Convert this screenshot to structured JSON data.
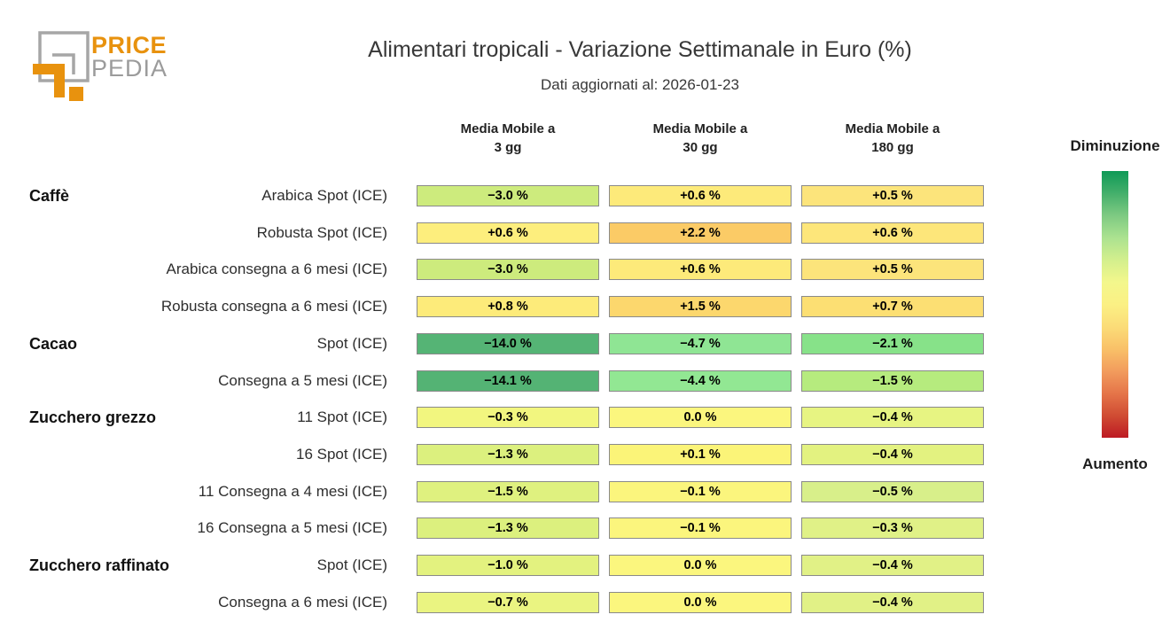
{
  "logo": {
    "price": "PRICE",
    "pedia": "PEDIA",
    "orange": "#e8920e",
    "gray": "#a6a6a6"
  },
  "header": {
    "title": "Alimentari tropicali - Variazione Settimanale in Euro (%)",
    "subtitle": "Dati aggiornati al: 2026-01-23"
  },
  "column_headers": [
    {
      "line1": "Media Mobile a",
      "line2": "3 gg"
    },
    {
      "line1": "Media Mobile a",
      "line2": "30 gg"
    },
    {
      "line1": "Media Mobile a",
      "line2": "180 gg"
    }
  ],
  "legend": {
    "top_label": "Diminuzione",
    "bottom_label": "Aumento",
    "gradient_stops": [
      "#0e9a57",
      "#44af6b",
      "#7eca82",
      "#abe290",
      "#d3ef8d",
      "#f3f78c",
      "#fbf084",
      "#fbdc78",
      "#f9c168",
      "#f29c5d",
      "#e57549",
      "#d04c33",
      "#bd1a23"
    ]
  },
  "chart_data": {
    "type": "heatmap",
    "title": "Alimentari tropicali - Variazione Settimanale in Euro (%)",
    "subtitle": "Dati aggiornati al: 2026-01-23",
    "unit": "%",
    "columns": [
      "Media Mobile a 3 gg",
      "Media Mobile a 30 gg",
      "Media Mobile a 180 gg"
    ],
    "legend": {
      "top": "Diminuzione",
      "bottom": "Aumento",
      "colormap": "green-yellow-red (green = decrease, red = increase)"
    },
    "rows": [
      {
        "category": "Caffè",
        "label": "Arabica Spot (ICE)",
        "values": [
          -3.0,
          0.6,
          0.5
        ],
        "display": [
          "−3.0 %",
          "+0.6 %",
          "+0.5 %"
        ],
        "colors": [
          "#cdeb7d",
          "#fdea7a",
          "#fce47b"
        ]
      },
      {
        "category": "",
        "label": "Robusta Spot (ICE)",
        "values": [
          0.6,
          2.2,
          0.6
        ],
        "display": [
          "+0.6 %",
          "+2.2 %",
          "+0.6 %"
        ],
        "colors": [
          "#fdee7d",
          "#fbcb66",
          "#fde67a"
        ]
      },
      {
        "category": "",
        "label": "Arabica consegna a 6 mesi (ICE)",
        "values": [
          -3.0,
          0.6,
          0.5
        ],
        "display": [
          "−3.0 %",
          "+0.6 %",
          "+0.5 %"
        ],
        "colors": [
          "#cdeb7d",
          "#fdea7a",
          "#fce47b"
        ]
      },
      {
        "category": "",
        "label": "Robusta consegna a 6 mesi (ICE)",
        "values": [
          0.8,
          1.5,
          0.7
        ],
        "display": [
          "+0.8 %",
          "+1.5 %",
          "+0.7 %"
        ],
        "colors": [
          "#fdeb7a",
          "#fcd76d",
          "#fcdf73"
        ]
      },
      {
        "category": "Cacao",
        "label": "Spot (ICE)",
        "values": [
          -14.0,
          -4.7,
          -2.1
        ],
        "display": [
          "−14.0 %",
          "−4.7 %",
          "−2.1 %"
        ],
        "colors": [
          "#55b475",
          "#8fe594",
          "#87e289"
        ]
      },
      {
        "category": "",
        "label": "Consegna a 5 mesi (ICE)",
        "values": [
          -14.1,
          -4.4,
          -1.5
        ],
        "display": [
          "−14.1 %",
          "−4.4 %",
          "−1.5 %"
        ],
        "colors": [
          "#54b374",
          "#92e793",
          "#b6eb7e"
        ]
      },
      {
        "category": "Zucchero grezzo",
        "label": "11 Spot (ICE)",
        "values": [
          -0.3,
          0.0,
          -0.4
        ],
        "display": [
          "−0.3 %",
          "0.0 %",
          "−0.4 %"
        ],
        "colors": [
          "#f2f67f",
          "#fbf67e",
          "#e7f482"
        ]
      },
      {
        "category": "",
        "label": "16 Spot (ICE)",
        "values": [
          -1.3,
          0.1,
          -0.4
        ],
        "display": [
          "−1.3 %",
          "+0.1 %",
          "−0.4 %"
        ],
        "colors": [
          "#dcf07e",
          "#fbf478",
          "#e3f280"
        ]
      },
      {
        "category": "",
        "label": "11 Consegna a 4 mesi (ICE)",
        "values": [
          -1.5,
          -0.1,
          -0.5
        ],
        "display": [
          "−1.5 %",
          "−0.1 %",
          "−0.5 %"
        ],
        "colors": [
          "#dff17f",
          "#fbf57d",
          "#d8ef8a"
        ]
      },
      {
        "category": "",
        "label": "16 Consegna a 5 mesi (ICE)",
        "values": [
          -1.3,
          -0.1,
          -0.3
        ],
        "display": [
          "−1.3 %",
          "−0.1 %",
          "−0.3 %"
        ],
        "colors": [
          "#dcf07e",
          "#fbf57d",
          "#e0f187"
        ]
      },
      {
        "category": "Zucchero raffinato",
        "label": "Spot (ICE)",
        "values": [
          -1.0,
          0.0,
          -0.4
        ],
        "display": [
          "−1.0 %",
          "0.0 %",
          "−0.4 %"
        ],
        "colors": [
          "#e3f27f",
          "#fbf67e",
          "#e1f186"
        ]
      },
      {
        "category": "",
        "label": "Consegna a 6 mesi (ICE)",
        "values": [
          -0.7,
          0.0,
          -0.4
        ],
        "display": [
          "−0.7 %",
          "0.0 %",
          "−0.4 %"
        ],
        "colors": [
          "#eaf481",
          "#fbf67e",
          "#e1f186"
        ]
      }
    ]
  }
}
